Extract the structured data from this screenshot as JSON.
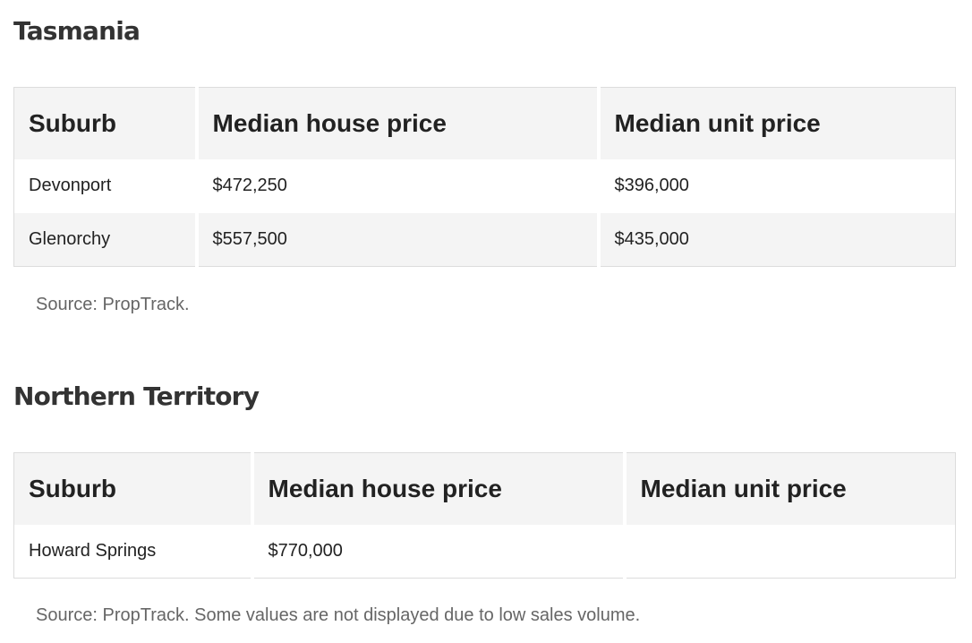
{
  "tasmania": {
    "title": "Tasmania",
    "headers": [
      "Suburb",
      "Median house price",
      "Median unit price"
    ],
    "rows": [
      [
        "Devonport",
        "$472,250",
        "$396,000"
      ],
      [
        "Glenorchy",
        "$557,500",
        "$435,000"
      ]
    ],
    "source": "Source: PropTrack."
  },
  "northern_territory": {
    "title": "Northern Territory",
    "headers": [
      "Suburb",
      "Median house price",
      "Median unit price"
    ],
    "rows": [
      [
        "Howard Springs",
        "$770,000",
        ""
      ]
    ],
    "source": "Source: PropTrack. Some values are not displayed due to low sales volume."
  }
}
